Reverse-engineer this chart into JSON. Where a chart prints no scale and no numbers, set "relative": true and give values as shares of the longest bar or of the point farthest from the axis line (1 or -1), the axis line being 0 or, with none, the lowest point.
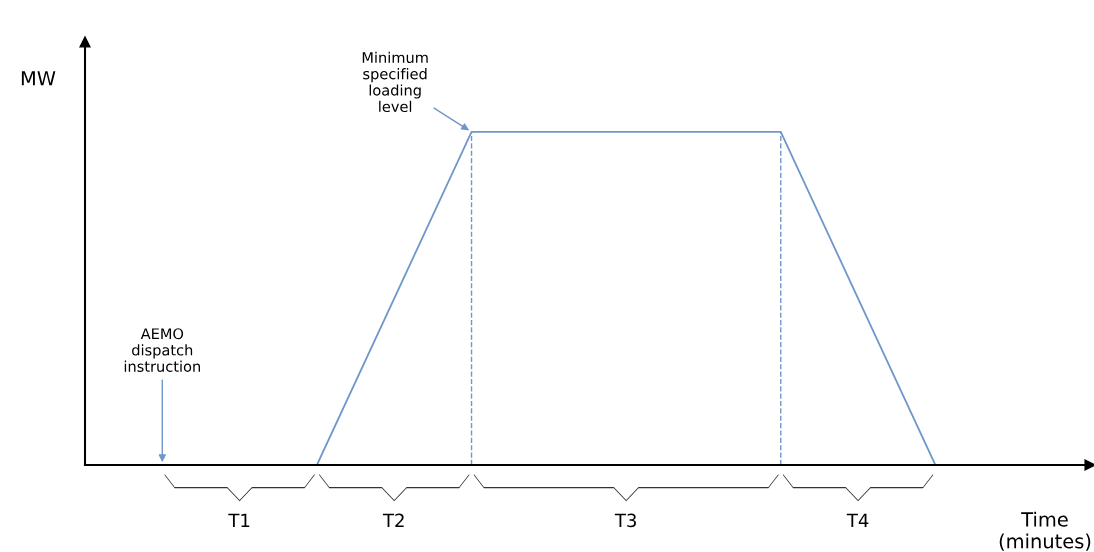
{
  "chart_data": {
    "type": "line",
    "relative": true,
    "categories": [
      null,
      null,
      null,
      null,
      null,
      null
    ],
    "series": [
      {
        "color": "#6f97c9",
        "values": [
          null,
          0,
          1,
          1,
          1,
          0
        ]
      }
    ],
    "ylabel": "MW",
    "xlabel": "Time\n(minutes)",
    "annotations": [
      "Minimum\nspecified\nloading\nlevel",
      "AEMO\ndispatch\ninstruction",
      "T1",
      "T2",
      "T3",
      "T4"
    ],
    "marker": "none",
    "line_style": "solid"
  }
}
